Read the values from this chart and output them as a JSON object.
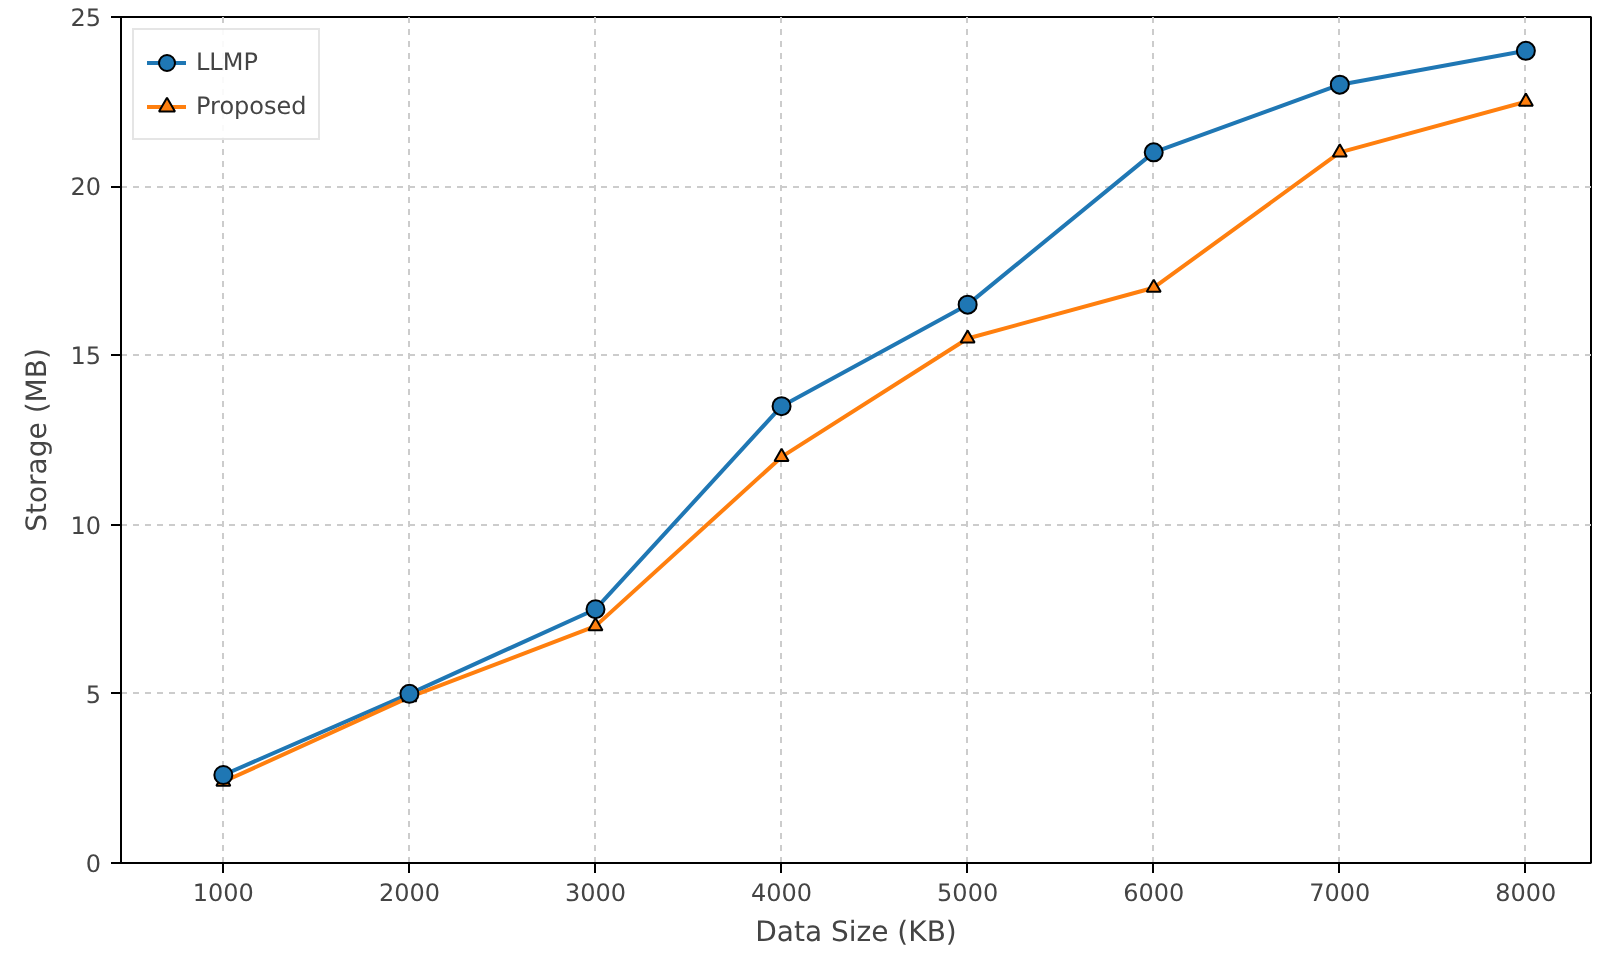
{
  "chart_data": {
    "type": "line",
    "xlabel": "Data Size (KB)",
    "ylabel": "Storage (MB)",
    "x": [
      1000,
      2000,
      3000,
      4000,
      5000,
      6000,
      7000,
      8000
    ],
    "series": [
      {
        "name": "LLMP",
        "color": "#1f77b4",
        "marker": "circle",
        "values": [
          2.6,
          5.0,
          7.5,
          13.5,
          16.5,
          21.0,
          23.0,
          24.0
        ]
      },
      {
        "name": "Proposed",
        "color": "#ff7f0e",
        "marker": "triangle",
        "values": [
          2.4,
          4.9,
          7.0,
          12.0,
          15.5,
          17.0,
          21.0,
          22.5
        ]
      }
    ],
    "xlim": [
      450,
      8350
    ],
    "ylim": [
      0,
      25
    ],
    "xticks": [
      1000,
      2000,
      3000,
      4000,
      5000,
      6000,
      7000,
      8000
    ],
    "yticks": [
      0,
      5,
      10,
      15,
      20,
      25
    ],
    "grid": true,
    "legend": "top left",
    "line_style": "solid"
  }
}
